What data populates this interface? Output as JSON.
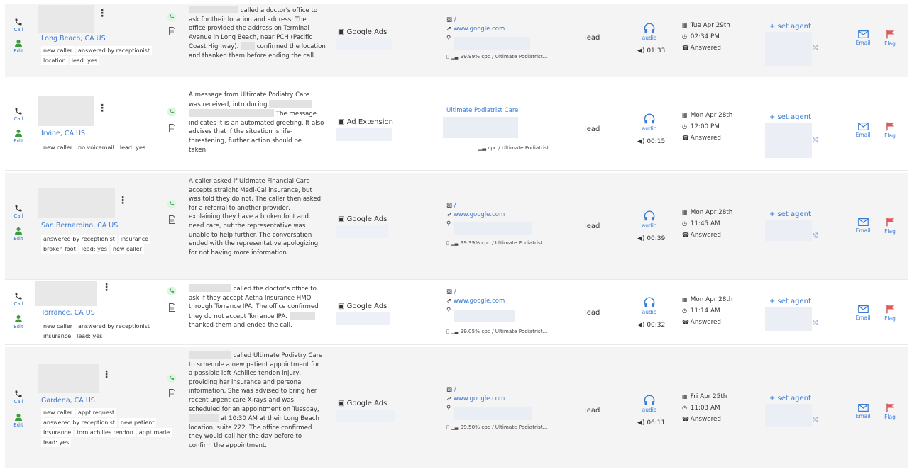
{
  "labels": {
    "call": "Call",
    "edit": "Edit",
    "audio": "audio",
    "email": "Email",
    "flag": "Flag",
    "set_agent": "+ set agent",
    "answered": "Answered",
    "lead": "lead",
    "lp_slash": "/"
  },
  "colors": {
    "link": "#3a7bd5",
    "green": "#34a853",
    "flag": "#e05a5a",
    "row_alt": "#f4f4f4"
  },
  "rows": [
    {
      "city": "Long Beach, CA US",
      "tags": [
        "new caller",
        "answered by receptionist",
        "location",
        "lead: yes"
      ],
      "summary": [
        "called a doctor's office to",
        "ask for their location and address. The",
        "office provided the address on Terminal",
        "Avenue in Long Beach, near PCH (Pacific",
        "Coast Highway).",
        "confirmed the location",
        "and thanked them before ending the call."
      ],
      "source": "Google Ads",
      "landing": "www.google.com",
      "cpc": "99.99% cpc / Ultimate Podiatrist...",
      "status": "lead",
      "duration": "01:33",
      "date": "Tue Apr 29th",
      "time": "02:34 PM",
      "result": "Answered"
    },
    {
      "city": "Irvine, CA US",
      "tags": [
        "new caller",
        "no voicemail",
        "lead: yes"
      ],
      "summary": [
        "A message from Ultimate Podiatry Care",
        "was received, introducing",
        "The message",
        "indicates it is an automated greeting. It also",
        "advises that if the situation is life-",
        "threatening, further action should be",
        "taken."
      ],
      "source": "Ad Extension",
      "landing_title": "Ultimate Podiatrist Care",
      "cpc": "cpc / Ultimate Podiatrist...",
      "status": "lead",
      "duration": "00:15",
      "date": "Mon Apr 28th",
      "time": "12:00 PM",
      "result": "Answered"
    },
    {
      "city": "San Bernardino, CA US",
      "tags": [
        "answered by receptionist",
        "insurance",
        "broken foot",
        "lead: yes",
        "new caller"
      ],
      "summary": [
        "A caller asked if Ultimate Financial Care",
        "accepts straight Medi-Cal insurance, but",
        "was told they do not. The caller then asked",
        "for a referral to another provider,",
        "explaining they have a broken foot and",
        "need care, but the representative was",
        "unable to help further. The conversation",
        "ended with the representative apologizing",
        "for not having more information."
      ],
      "source": "Google Ads",
      "landing": "www.google.com",
      "cpc": "99.39% cpc / Ultimate Podiatrist...",
      "status": "lead",
      "duration": "00:39",
      "date": "Mon Apr 28th",
      "time": "11:45 AM",
      "result": "Answered"
    },
    {
      "city": "Torrance, CA US",
      "tags": [
        "new caller",
        "answered by receptionist",
        "insurance",
        "lead: yes"
      ],
      "summary": [
        "called the doctor's office to",
        "ask if they accept Aetna Insurance HMO",
        "through Torrance IPA. The office confirmed",
        "they do not accept Torrance IPA.",
        "thanked them and ended the call."
      ],
      "source": "Google Ads",
      "landing": "www.google.com",
      "cpc": "99.05% cpc / Ultimate Podiatrist...",
      "status": "lead",
      "duration": "00:32",
      "date": "Mon Apr 28th",
      "time": "11:14 AM",
      "result": "Answered"
    },
    {
      "city": "Gardena, CA US",
      "tags": [
        "new caller",
        "appt request",
        "answered by receptionist",
        "new patient",
        "insurance",
        "torn achilles tendon",
        "appt made",
        "lead: yes"
      ],
      "summary": [
        "called Ultimate Podiatry Care",
        "to schedule a new patient appointment for",
        "a possible left Achilles tendon injury,",
        "providing her insurance and personal",
        "information. She was advised to bring her",
        "recent urgent care X-rays and was",
        "scheduled for an appointment on Tuesday,",
        "at 10:30 AM at their Long Beach",
        "location, suite 222. The office confirmed",
        "they would call her the day before to",
        "confirm the appointment."
      ],
      "source": "Google Ads",
      "landing": "www.google.com",
      "cpc": "99.50% cpc / Ultimate Podiatrist...",
      "status": "lead",
      "duration": "06:11",
      "date": "Fri Apr 25th",
      "time": "11:03 AM",
      "result": "Answered"
    }
  ]
}
